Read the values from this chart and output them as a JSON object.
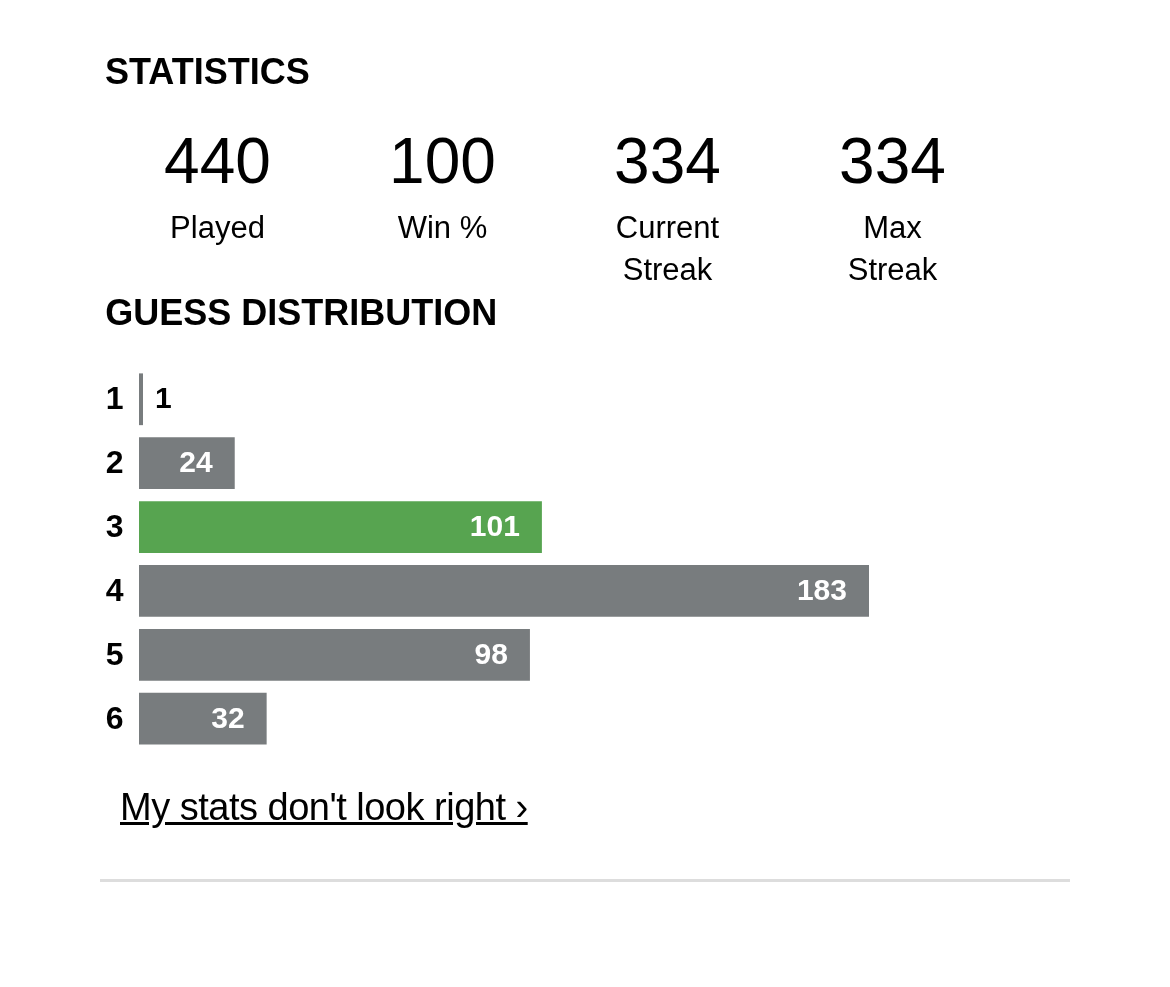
{
  "chart_data": [
    {
      "type": "other",
      "title": "STATISTICS",
      "categories": [
        "Played",
        "Win %",
        "Current Streak",
        "Max Streak"
      ],
      "values": [
        440,
        100,
        334,
        334
      ],
      "data_labels": true
    },
    {
      "type": "bar",
      "orientation": "horizontal",
      "title": "GUESS DISTRIBUTION",
      "categories": [
        "1",
        "2",
        "3",
        "4",
        "5",
        "6"
      ],
      "values": [
        1,
        24,
        101,
        183,
        98,
        32
      ],
      "colors": [
        "#787c7e",
        "#787c7e",
        "#57a450",
        "#787c7e",
        "#787c7e",
        "#787c7e"
      ],
      "data_labels": true,
      "grid": false,
      "annotations": [
        "My stats don't look right ›"
      ]
    }
  ]
}
